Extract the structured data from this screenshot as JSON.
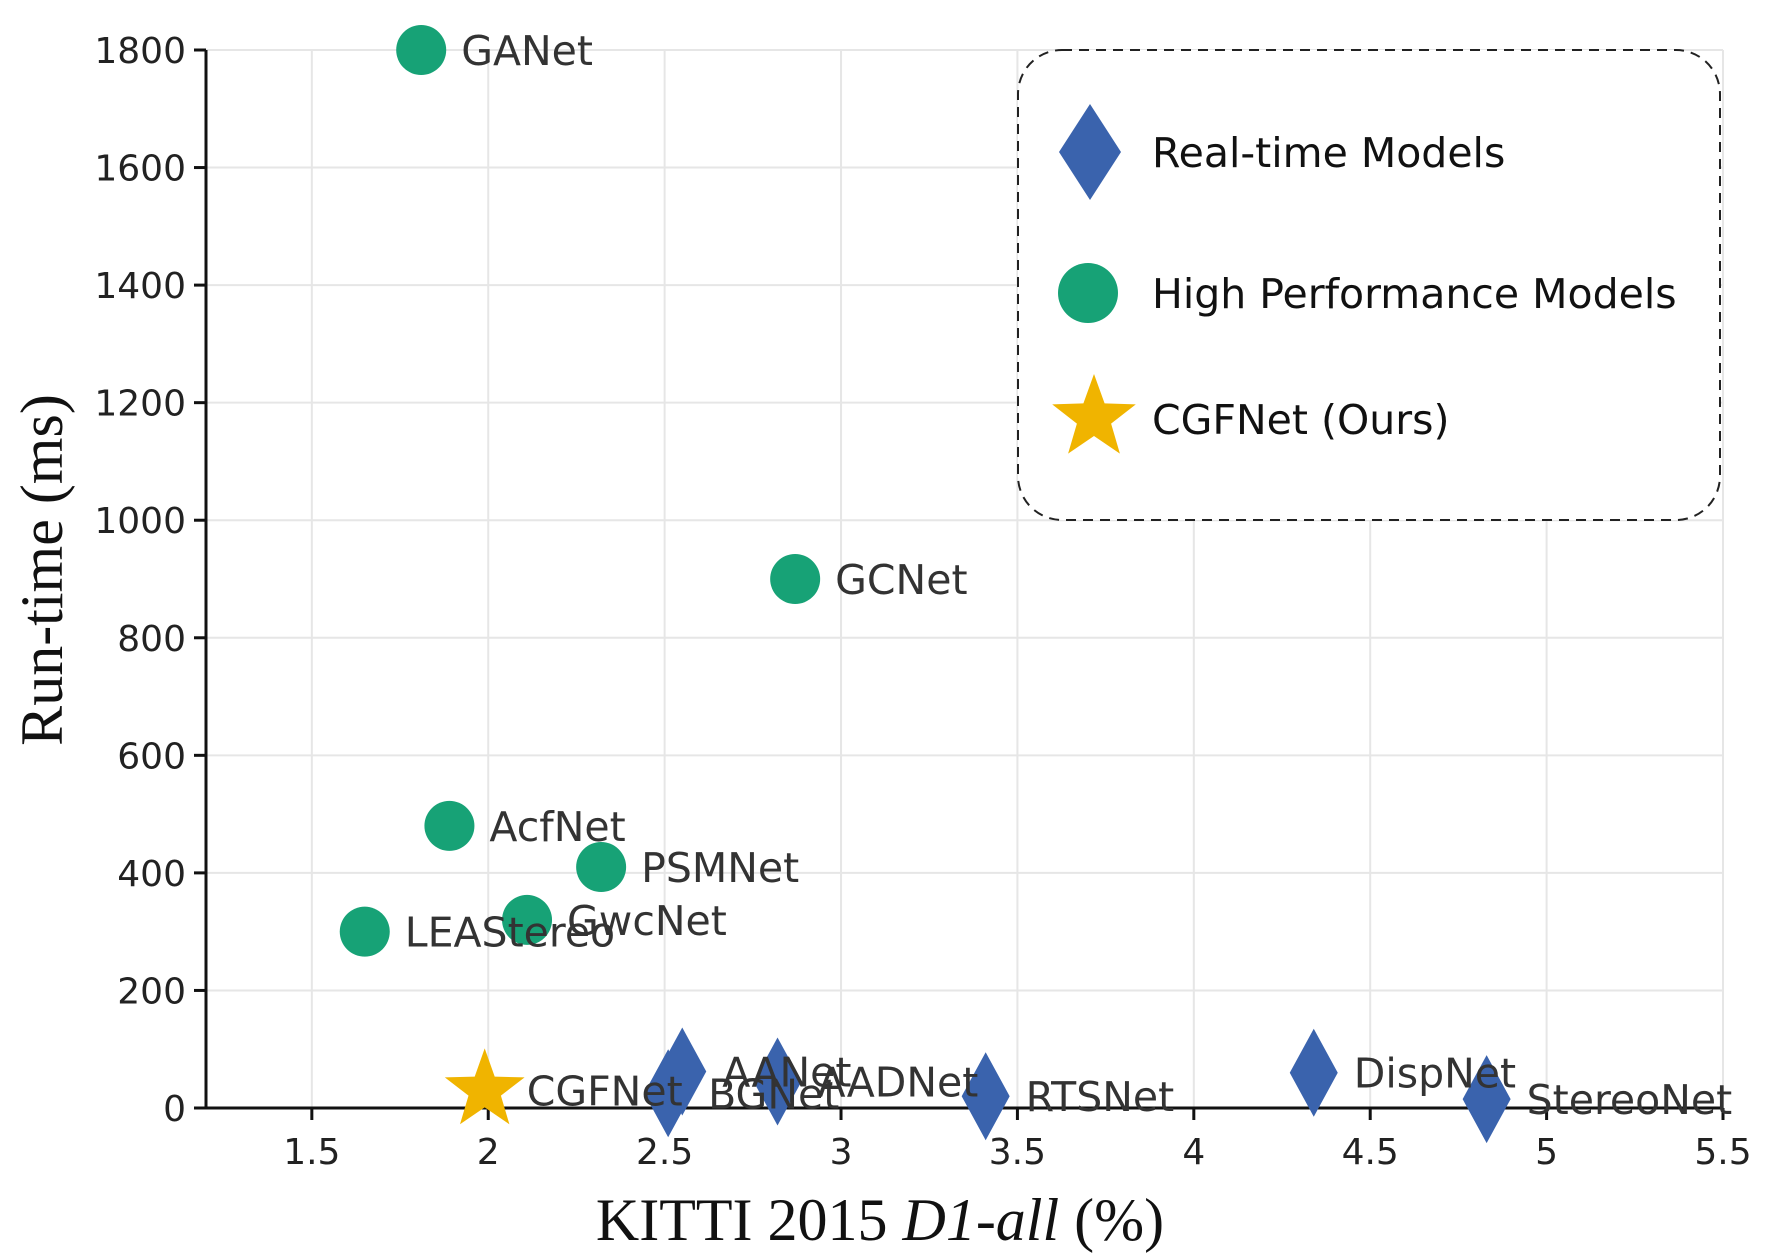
{
  "chart_data": {
    "type": "scatter",
    "xlabel": {
      "main": "KITTI 2015 ",
      "italic": "D1-all",
      "suffix": " (%)"
    },
    "ylabel": "Run-time (ms)",
    "xlim": [
      1.2,
      5.5
    ],
    "ylim": [
      0,
      1800
    ],
    "xticks": [
      1.5,
      2,
      2.5,
      3,
      3.5,
      4,
      4.5,
      5,
      5.5
    ],
    "xtick_labels": [
      "1.5",
      "2",
      "2.5",
      "3",
      "3.5",
      "4",
      "4.5",
      "5",
      "5.5"
    ],
    "yticks": [
      0,
      200,
      400,
      600,
      800,
      1000,
      1200,
      1400,
      1600,
      1800
    ],
    "ytick_labels": [
      "0",
      "200",
      "400",
      "600",
      "800",
      "1000",
      "1200",
      "1400",
      "1600",
      "1800"
    ],
    "grid": true,
    "legend_position": "top-right",
    "colors": {
      "real_time": "#3a63ad",
      "high_perf": "#17a276",
      "ours": "#f0b400"
    },
    "series": [
      {
        "name": "Real-time Models",
        "marker": "diamond",
        "color": "#3a63ad",
        "points": [
          {
            "label": "BGNet",
            "x": 2.51,
            "y": 25
          },
          {
            "label": "AANet",
            "x": 2.55,
            "y": 62
          },
          {
            "label": "AADNet",
            "x": 2.82,
            "y": 45
          },
          {
            "label": "RTSNet",
            "x": 3.41,
            "y": 20
          },
          {
            "label": "DispNet",
            "x": 4.34,
            "y": 60
          },
          {
            "label": "StereoNet",
            "x": 4.83,
            "y": 15
          }
        ]
      },
      {
        "name": "High Performance Models",
        "marker": "circle",
        "color": "#17a276",
        "points": [
          {
            "label": "GANet",
            "x": 1.81,
            "y": 1800
          },
          {
            "label": "GCNet",
            "x": 2.87,
            "y": 900
          },
          {
            "label": "AcfNet",
            "x": 1.89,
            "y": 480
          },
          {
            "label": "PSMNet",
            "x": 2.32,
            "y": 410
          },
          {
            "label": "GwcNet",
            "x": 2.11,
            "y": 320
          },
          {
            "label": "LEAStereo",
            "x": 1.65,
            "y": 300
          }
        ]
      },
      {
        "name": "CGFNet (Ours)",
        "marker": "star",
        "color": "#f0b400",
        "points": [
          {
            "label": "CGFNet",
            "x": 1.99,
            "y": 30
          }
        ]
      }
    ]
  }
}
